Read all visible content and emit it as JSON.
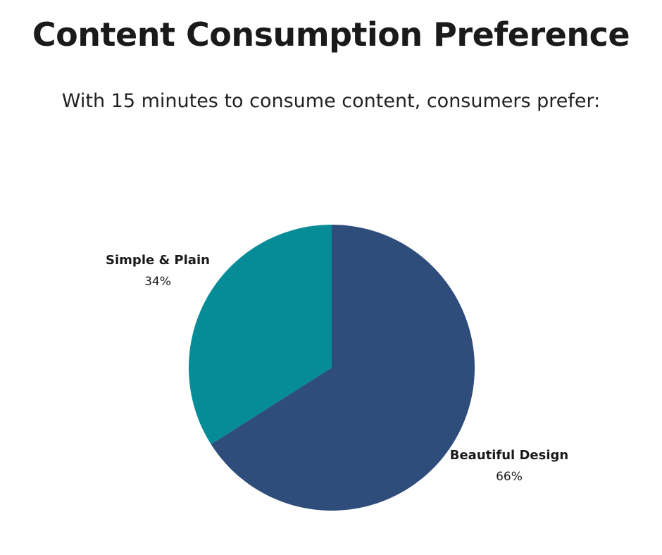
{
  "title": "Content Consumption Preference",
  "subtitle": "With 15 minutes to consume content, consumers prefer:",
  "chart_data": {
    "type": "pie",
    "title": "Content Consumption Preference",
    "subtitle": "With 15 minutes to consume content, consumers prefer:",
    "slices": [
      {
        "label": "Beautiful Design",
        "value": 66,
        "value_label": "66%",
        "color": "#2e4d7b"
      },
      {
        "label": "Simple & Plain",
        "value": 34,
        "value_label": "34%",
        "color": "#058c96"
      }
    ],
    "legend": "none"
  }
}
